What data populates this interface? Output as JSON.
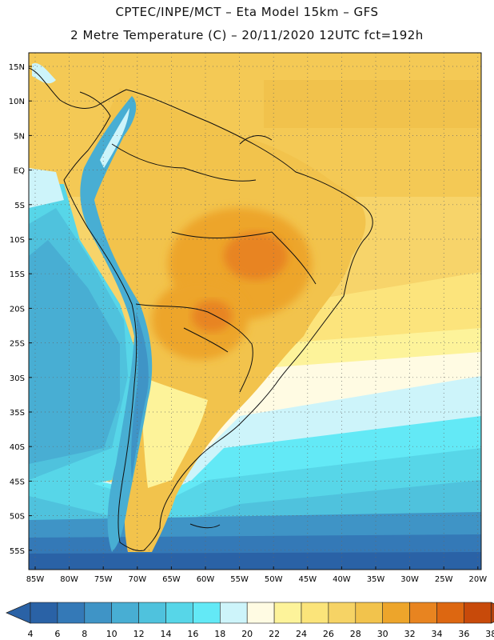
{
  "header": {
    "line1": "CPTEC/INPE/MCT –  Eta Model 15km – GFS",
    "line2": "2 Metre Temperature (C) – 20/11/2020 12UTC fct=192h"
  },
  "map": {
    "lat_labels": [
      "15N",
      "10N",
      "5N",
      "EQ",
      "5S",
      "10S",
      "15S",
      "20S",
      "25S",
      "30S",
      "35S",
      "40S",
      "45S",
      "50S",
      "55S"
    ],
    "lon_labels": [
      "85W",
      "80W",
      "75W",
      "70W",
      "65W",
      "60W",
      "55W",
      "50W",
      "45W",
      "40W",
      "35W",
      "30W",
      "25W",
      "20W"
    ]
  },
  "legend": {
    "ticks": [
      "4",
      "6",
      "8",
      "10",
      "12",
      "14",
      "16",
      "18",
      "20",
      "22",
      "24",
      "26",
      "28",
      "30",
      "32",
      "34",
      "36",
      "38"
    ],
    "colors": [
      "#2a62a6",
      "#3479b7",
      "#3f94c6",
      "#48aed3",
      "#4fc2dd",
      "#57d6e8",
      "#63e9f6",
      "#cdf4fa",
      "#fffbe3",
      "#fdf39a",
      "#fbe47a",
      "#f6d365",
      "#f2c34c",
      "#eda52b",
      "#e88420",
      "#dd6711",
      "#c84a0a",
      "#b3430f"
    ]
  }
}
